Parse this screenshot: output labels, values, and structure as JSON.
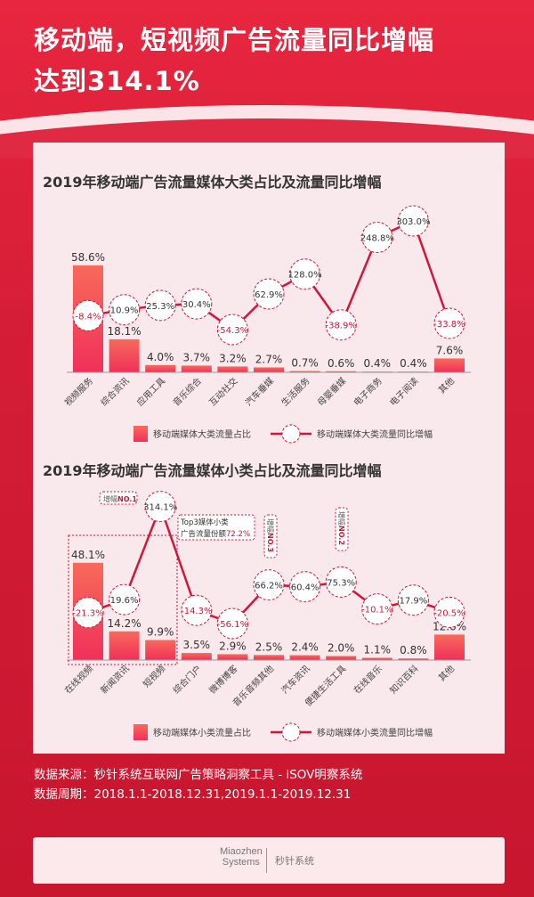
{
  "header": {
    "title_line1": "移动端，短视频广告流量同比增幅",
    "title_line2": "达到314.1%"
  },
  "colors": {
    "background": "#d81e3a",
    "bar": "#f2455f",
    "line": "#d2163a",
    "negative": "#d2163a",
    "card": "#f9e8ec"
  },
  "chart_data": [
    {
      "type": "bar+line",
      "title": "2019年移动端广告流量媒体大类占比及流量同比增幅",
      "categories": [
        "视频服务",
        "综合资讯",
        "应用工具",
        "音乐综合",
        "互动社交",
        "汽车垂媒",
        "生活服务",
        "母婴垂媒",
        "电子商务",
        "电子阅读",
        "其他"
      ],
      "series": [
        {
          "name": "移动端媒体大类流量占比",
          "type": "bar",
          "values": [
            58.6,
            18.1,
            4.0,
            3.7,
            3.2,
            2.7,
            0.7,
            0.6,
            0.4,
            0.4,
            7.6
          ],
          "labels": [
            "58.6%",
            "18.1%",
            "4.0%",
            "3.7%",
            "3.2%",
            "2.7%",
            "0.7%",
            "0.6%",
            "0.4%",
            "0.4%",
            "7.6%"
          ]
        },
        {
          "name": "移动端媒体大类流量同比增幅",
          "type": "line",
          "values": [
            -8.4,
            10.9,
            25.3,
            30.4,
            -54.3,
            62.9,
            128.0,
            -38.9,
            248.8,
            303.0,
            -33.8
          ],
          "labels": [
            "-8.4%",
            "10.9%",
            "25.3%",
            "30.4%",
            "-54.3%",
            "62.9%",
            "128.0%",
            "-38.9%",
            "248.8%",
            "303.0%",
            "-33.8%"
          ]
        }
      ],
      "legend": "bottom"
    },
    {
      "type": "bar+line",
      "title": "2019年移动端广告流量媒体小类占比及流量同比增幅",
      "categories": [
        "在线视频",
        "新闻资讯",
        "短视频",
        "综合门户",
        "微博博客",
        "音乐音频其他",
        "汽车资讯",
        "便捷生活工具",
        "在线音乐",
        "知识百科",
        "其他"
      ],
      "series": [
        {
          "name": "移动端媒体小类流量占比",
          "type": "bar",
          "values": [
            48.1,
            14.2,
            9.9,
            3.5,
            2.9,
            2.5,
            2.4,
            2.0,
            1.1,
            0.8,
            12.6
          ],
          "labels": [
            "48.1%",
            "14.2%",
            "9.9%",
            "3.5%",
            "2.9%",
            "2.5%",
            "2.4%",
            "2.0%",
            "1.1%",
            "0.8%",
            "12.6%"
          ]
        },
        {
          "name": "移动端媒体小类流量同比增幅",
          "type": "line",
          "values": [
            -21.3,
            19.6,
            314.1,
            -14.3,
            -56.1,
            66.2,
            60.4,
            75.3,
            -10.1,
            17.9,
            -20.5
          ],
          "labels": [
            "-21.3%",
            "19.6%",
            "314.1%",
            "-14.3%",
            "-56.1%",
            "66.2%",
            "60.4%",
            "75.3%",
            "-10.1%",
            "17.9%",
            "-20.5%"
          ]
        }
      ],
      "annotations": {
        "no1": {
          "prefix": "增幅",
          "rank": "NO.1"
        },
        "no2": {
          "prefix": "增幅",
          "rank": "NO.2"
        },
        "no3": {
          "prefix": "增幅",
          "rank": "NO.3"
        },
        "top3_line1": "Top3媒体小类",
        "top3_line2": "广告流量份额",
        "top3_value": "72.2%"
      },
      "legend": "bottom"
    }
  ],
  "source": {
    "line1": "数据来源：秒针系统互联网广告策略洞察工具 - iSOV明察系统",
    "line2": "数据周期：2018.1.1-2018.12.31,2019.1.1-2019.12.31"
  },
  "footer": {
    "logo_line1": "Miaozhen",
    "logo_line2": "Systems",
    "brand": "秒针系统"
  }
}
